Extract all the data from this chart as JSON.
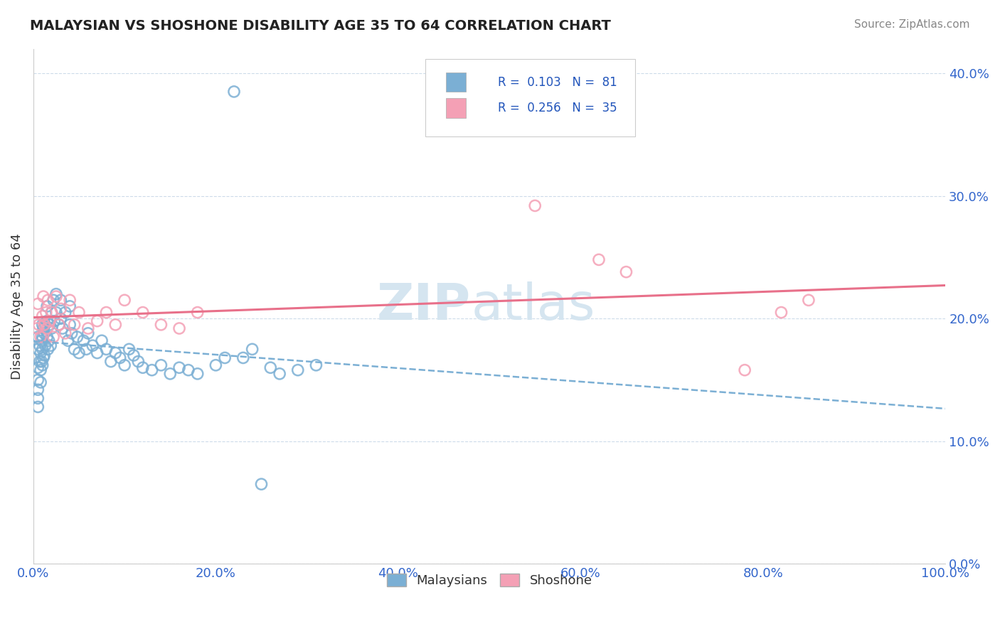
{
  "title": "MALAYSIAN VS SHOSHONE DISABILITY AGE 35 TO 64 CORRELATION CHART",
  "source": "Source: ZipAtlas.com",
  "ylabel": "Disability Age 35 to 64",
  "xlim": [
    0.0,
    1.0
  ],
  "ylim": [
    0.0,
    0.42
  ],
  "x_ticks": [
    0.0,
    0.2,
    0.4,
    0.6,
    0.8,
    1.0
  ],
  "x_tick_labels": [
    "0.0%",
    "20.0%",
    "40.0%",
    "60.0%",
    "80.0%",
    "100.0%"
  ],
  "y_ticks": [
    0.0,
    0.1,
    0.2,
    0.3,
    0.4
  ],
  "y_tick_labels": [
    "0.0%",
    "10.0%",
    "20.0%",
    "30.0%",
    "40.0%"
  ],
  "malaysian_color": "#7bafd4",
  "shoshone_color": "#f4a0b5",
  "malay_trend_color": "#7bafd4",
  "shoshone_trend_color": "#e8708a",
  "watermark_color": "#d5e5f0",
  "grid_color": "#c8d8e8",
  "legend_text_color": "#2255bb",
  "tick_color": "#3366cc",
  "title_color": "#222222",
  "source_color": "#888888",
  "ylabel_color": "#333333",
  "malaysian_x": [
    0.005,
    0.005,
    0.005,
    0.005,
    0.005,
    0.005,
    0.005,
    0.007,
    0.007,
    0.008,
    0.008,
    0.008,
    0.009,
    0.009,
    0.01,
    0.01,
    0.01,
    0.01,
    0.011,
    0.011,
    0.012,
    0.012,
    0.013,
    0.013,
    0.015,
    0.015,
    0.015,
    0.016,
    0.017,
    0.018,
    0.019,
    0.02,
    0.02,
    0.022,
    0.023,
    0.025,
    0.025,
    0.028,
    0.03,
    0.03,
    0.032,
    0.035,
    0.038,
    0.04,
    0.04,
    0.042,
    0.045,
    0.048,
    0.05,
    0.055,
    0.058,
    0.06,
    0.065,
    0.07,
    0.075,
    0.08,
    0.085,
    0.09,
    0.095,
    0.1,
    0.105,
    0.11,
    0.115,
    0.12,
    0.13,
    0.14,
    0.15,
    0.16,
    0.17,
    0.18,
    0.2,
    0.21,
    0.22,
    0.23,
    0.24,
    0.25,
    0.26,
    0.27,
    0.29,
    0.31
  ],
  "malaysian_y": [
    0.175,
    0.185,
    0.16,
    0.15,
    0.142,
    0.135,
    0.128,
    0.178,
    0.165,
    0.172,
    0.158,
    0.148,
    0.182,
    0.165,
    0.195,
    0.185,
    0.175,
    0.162,
    0.192,
    0.168,
    0.188,
    0.17,
    0.195,
    0.178,
    0.21,
    0.198,
    0.185,
    0.175,
    0.182,
    0.195,
    0.178,
    0.205,
    0.192,
    0.215,
    0.198,
    0.22,
    0.205,
    0.195,
    0.215,
    0.2,
    0.192,
    0.205,
    0.182,
    0.21,
    0.195,
    0.188,
    0.175,
    0.185,
    0.172,
    0.182,
    0.175,
    0.188,
    0.178,
    0.172,
    0.182,
    0.175,
    0.165,
    0.172,
    0.168,
    0.162,
    0.175,
    0.17,
    0.165,
    0.16,
    0.158,
    0.162,
    0.155,
    0.16,
    0.158,
    0.155,
    0.162,
    0.168,
    0.385,
    0.168,
    0.175,
    0.065,
    0.16,
    0.155,
    0.158,
    0.162
  ],
  "shoshone_x": [
    0.004,
    0.005,
    0.006,
    0.008,
    0.01,
    0.011,
    0.012,
    0.014,
    0.015,
    0.016,
    0.018,
    0.02,
    0.022,
    0.025,
    0.028,
    0.03,
    0.035,
    0.04,
    0.045,
    0.05,
    0.06,
    0.07,
    0.08,
    0.09,
    0.1,
    0.12,
    0.14,
    0.16,
    0.18,
    0.55,
    0.62,
    0.65,
    0.78,
    0.82,
    0.85
  ],
  "shoshone_y": [
    0.192,
    0.212,
    0.195,
    0.185,
    0.202,
    0.218,
    0.195,
    0.205,
    0.192,
    0.215,
    0.198,
    0.205,
    0.185,
    0.218,
    0.195,
    0.208,
    0.188,
    0.215,
    0.195,
    0.205,
    0.192,
    0.198,
    0.205,
    0.195,
    0.215,
    0.205,
    0.195,
    0.192,
    0.205,
    0.292,
    0.248,
    0.238,
    0.158,
    0.205,
    0.215
  ]
}
